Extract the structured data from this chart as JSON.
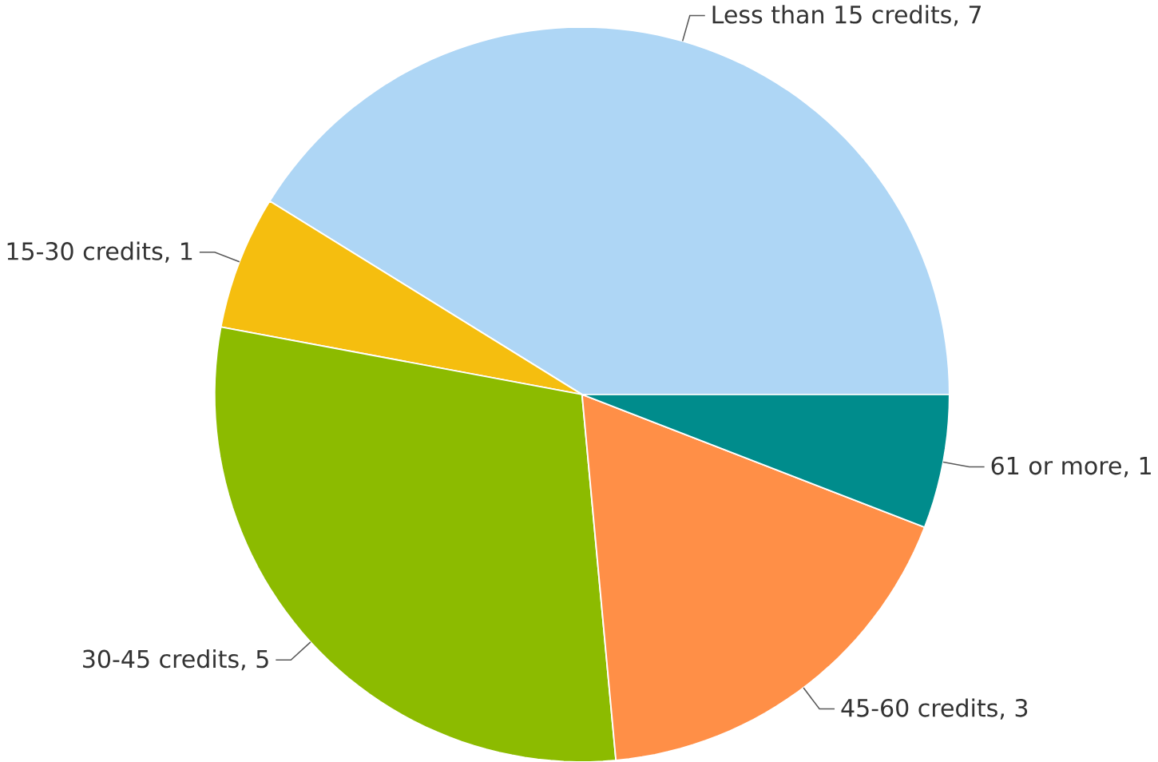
{
  "chart_data": {
    "type": "pie",
    "categories": [
      "Less than 15 credits, 7",
      "15-30 credits, 1",
      "30-45 credits, 5",
      "45-60 credits, 3",
      "61 or more, 1"
    ],
    "values": [
      7,
      1,
      5,
      3,
      1
    ],
    "colors": [
      "#aed6f5",
      "#f5be0f",
      "#8cbb00",
      "#ff8f47",
      "#008c8c"
    ]
  }
}
